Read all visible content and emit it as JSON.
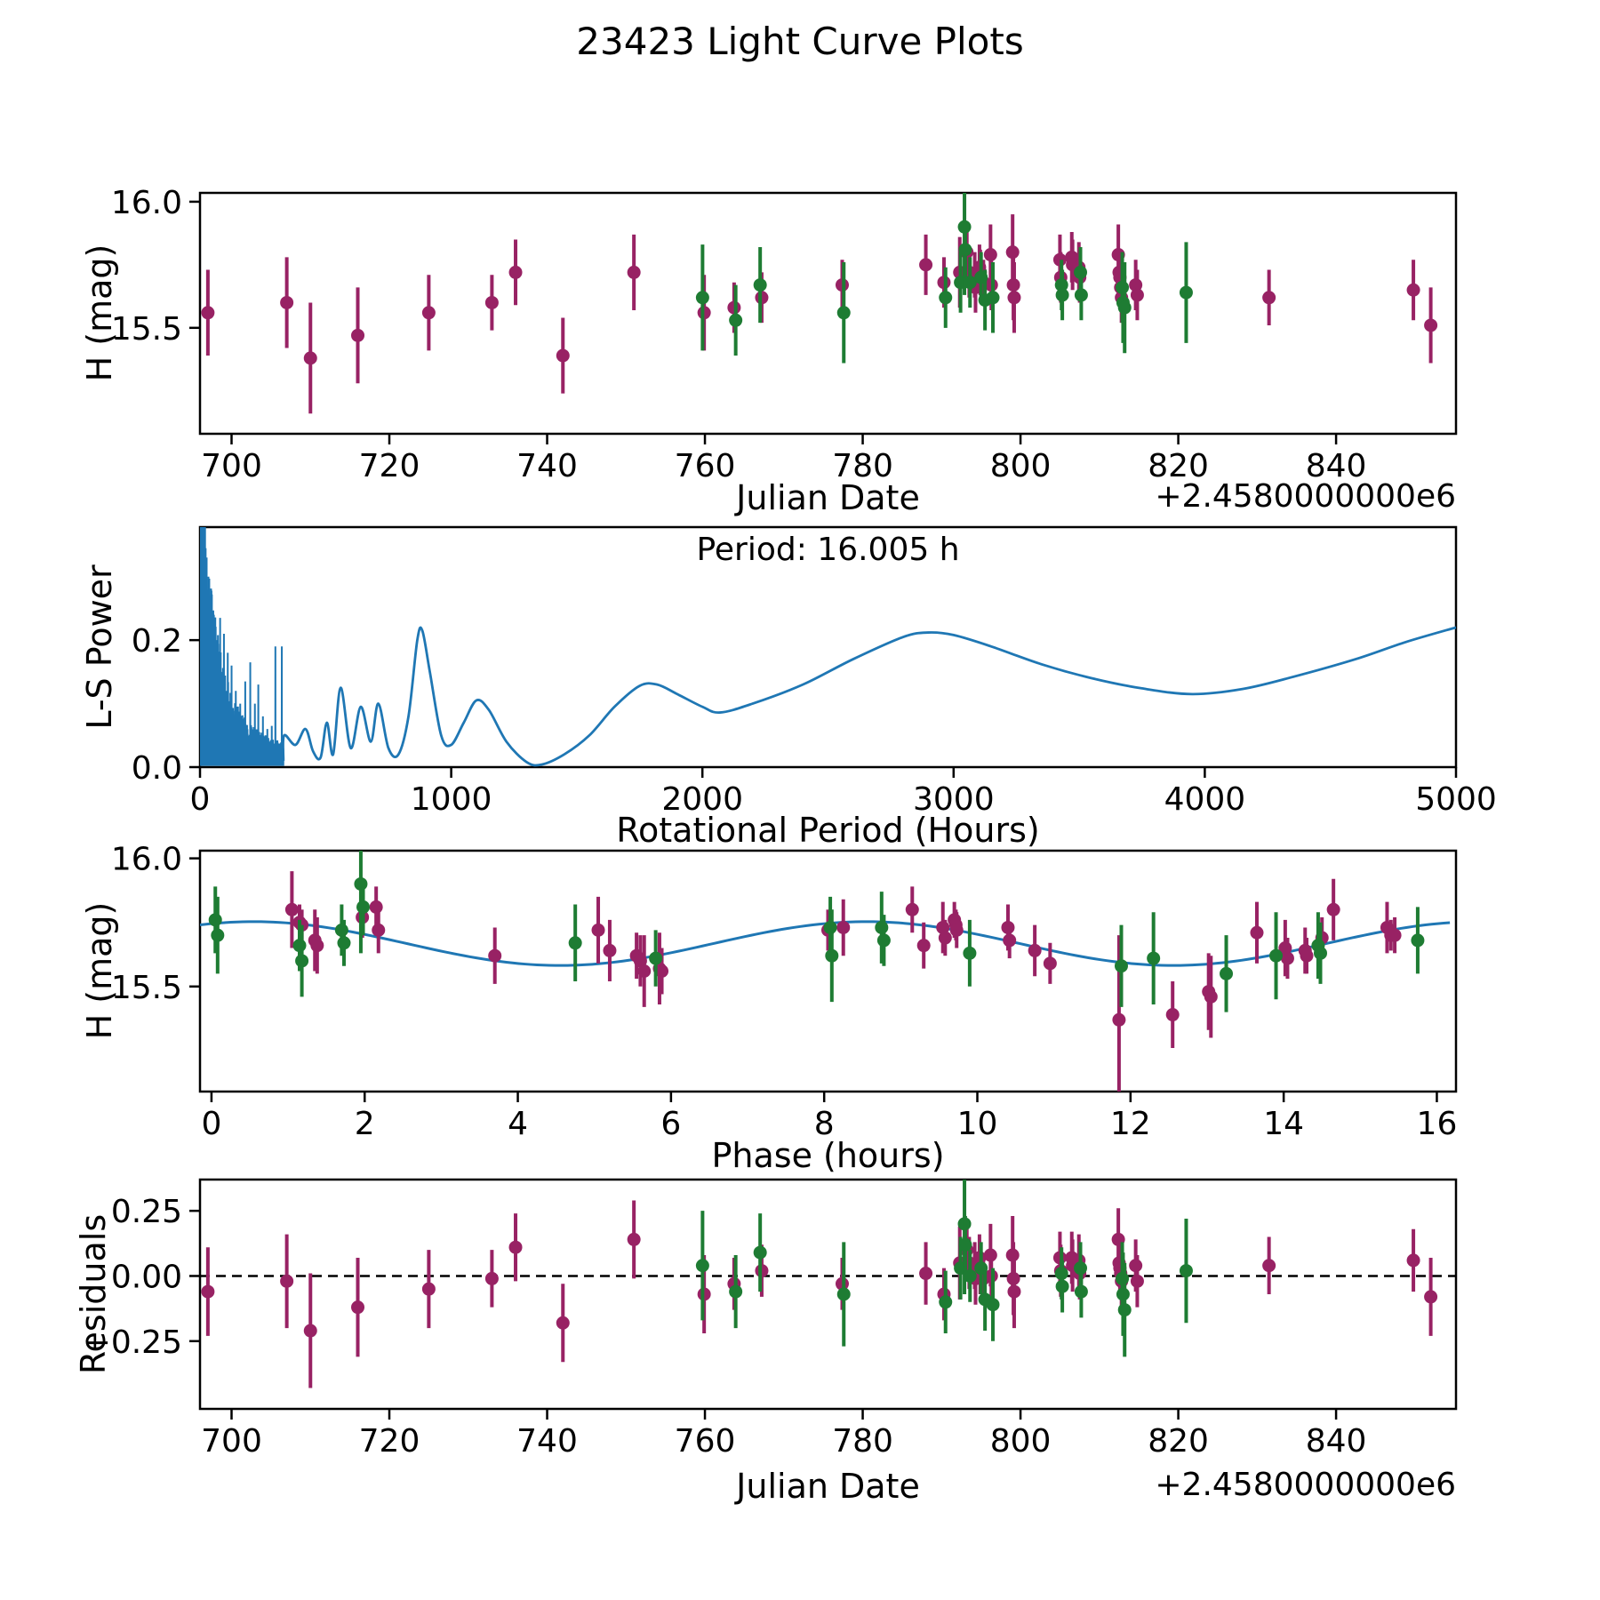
{
  "title": "23423 Light Curve Plots",
  "colors": {
    "series_a": "#982264",
    "series_b": "#1e7c33",
    "fit_line": "#1f77b4",
    "axis": "#000000"
  },
  "chart_data": {
    "light_curve": {
      "type": "scatter",
      "xlabel": "Julian Date",
      "ylabel": "H (mag)",
      "x_offset": "+2.4580000000e6",
      "xlim": [
        696.0,
        855.2
      ],
      "ylim": [
        15.08,
        16.035
      ],
      "xticks": [
        700,
        720,
        740,
        760,
        780,
        800,
        820,
        840
      ],
      "xtick_labels": [
        "700",
        "720",
        "740",
        "760",
        "780",
        "800",
        "820",
        "840"
      ],
      "yticks": [
        16.0,
        15.5
      ],
      "ytick_labels": [
        "16.0",
        "15.5"
      ],
      "series": {
        "purple": [
          [
            697.0,
            15.56,
            0.17,
            -0.06
          ],
          [
            707.0,
            15.6,
            0.18,
            -0.02
          ],
          [
            710.0,
            15.38,
            0.22,
            -0.21
          ],
          [
            716.0,
            15.47,
            0.19,
            -0.12
          ],
          [
            725.0,
            15.56,
            0.15,
            -0.05
          ],
          [
            733.0,
            15.6,
            0.11,
            -0.01
          ],
          [
            736.0,
            15.72,
            0.13,
            0.11
          ],
          [
            742.0,
            15.39,
            0.15,
            -0.18
          ],
          [
            751.0,
            15.72,
            0.15,
            0.14
          ],
          [
            759.9,
            15.56,
            0.15,
            -0.07
          ],
          [
            763.7,
            15.58,
            0.1,
            -0.03
          ],
          [
            767.2,
            15.62,
            0.1,
            0.02
          ],
          [
            777.4,
            15.67,
            0.1,
            -0.03
          ],
          [
            788.0,
            15.75,
            0.12,
            0.01
          ],
          [
            790.3,
            15.68,
            0.1,
            -0.07
          ],
          [
            792.3,
            15.72,
            0.14,
            0.05
          ],
          [
            793.2,
            15.8,
            0.1,
            0.1
          ],
          [
            793.5,
            15.72,
            0.1,
            0.05
          ],
          [
            794.2,
            15.71,
            0.09,
            0.04
          ],
          [
            794.3,
            15.66,
            0.1,
            -0.01
          ],
          [
            794.8,
            15.74,
            0.09,
            0.07
          ],
          [
            794.9,
            15.72,
            0.09,
            0.02
          ],
          [
            795.3,
            15.68,
            0.09,
            -0.01
          ],
          [
            796.2,
            15.79,
            0.12,
            0.08
          ],
          [
            796.3,
            15.67,
            0.1,
            0.0
          ],
          [
            799.0,
            15.8,
            0.15,
            0.08
          ],
          [
            799.1,
            15.67,
            0.14,
            -0.01
          ],
          [
            799.2,
            15.62,
            0.14,
            -0.06
          ],
          [
            805.0,
            15.77,
            0.1,
            0.07
          ],
          [
            805.1,
            15.7,
            0.1,
            0.02
          ],
          [
            806.5,
            15.78,
            0.1,
            0.07
          ],
          [
            806.6,
            15.75,
            0.1,
            0.04
          ],
          [
            807.4,
            15.74,
            0.1,
            0.06
          ],
          [
            807.5,
            15.7,
            0.1,
            0.01
          ],
          [
            812.4,
            15.79,
            0.12,
            0.14
          ],
          [
            812.5,
            15.72,
            0.09,
            0.05
          ],
          [
            812.6,
            15.7,
            0.09,
            0.03
          ],
          [
            812.7,
            15.66,
            0.09,
            0.01
          ],
          [
            812.8,
            15.62,
            0.1,
            -0.02
          ],
          [
            814.6,
            15.67,
            0.1,
            0.04
          ],
          [
            814.8,
            15.63,
            0.1,
            -0.02
          ],
          [
            831.5,
            15.62,
            0.11,
            0.04
          ],
          [
            849.8,
            15.65,
            0.12,
            0.06
          ],
          [
            852.0,
            15.51,
            0.15,
            -0.08
          ]
        ],
        "green": [
          [
            759.7,
            15.62,
            0.21,
            0.04
          ],
          [
            763.9,
            15.53,
            0.14,
            -0.06
          ],
          [
            767.0,
            15.67,
            0.15,
            0.09
          ],
          [
            777.6,
            15.56,
            0.2,
            -0.07
          ],
          [
            790.5,
            15.62,
            0.12,
            -0.1
          ],
          [
            792.4,
            15.68,
            0.12,
            0.03
          ],
          [
            792.9,
            15.9,
            0.27,
            0.2
          ],
          [
            793.0,
            15.81,
            0.11,
            0.12
          ],
          [
            793.6,
            15.68,
            0.1,
            0.0
          ],
          [
            795.0,
            15.7,
            0.1,
            0.03
          ],
          [
            795.5,
            15.61,
            0.12,
            -0.09
          ],
          [
            796.5,
            15.62,
            0.14,
            -0.11
          ],
          [
            805.2,
            15.67,
            0.1,
            0.01
          ],
          [
            805.3,
            15.63,
            0.1,
            -0.04
          ],
          [
            807.6,
            15.72,
            0.1,
            0.03
          ],
          [
            807.7,
            15.63,
            0.1,
            -0.06
          ],
          [
            812.9,
            15.66,
            0.14,
            -0.01
          ],
          [
            813.0,
            15.6,
            0.16,
            -0.07
          ],
          [
            813.2,
            15.58,
            0.18,
            -0.13
          ],
          [
            821.0,
            15.64,
            0.2,
            0.02
          ]
        ]
      }
    },
    "periodogram": {
      "type": "line",
      "xlabel": "Rotational Period (Hours)",
      "ylabel": "L-S Power",
      "annotation": "Period: 16.005 h",
      "best_period_hours": 16.005,
      "xlim": [
        0,
        5000
      ],
      "ylim": [
        0,
        0.378
      ],
      "xticks": [
        0,
        1000,
        2000,
        3000,
        4000,
        5000
      ],
      "xtick_labels": [
        "0",
        "1000",
        "2000",
        "3000",
        "4000",
        "5000"
      ],
      "yticks": [
        0.0,
        0.2
      ],
      "ytick_labels": [
        "0.0",
        "0.2"
      ],
      "noise_region": {
        "from": 0.5,
        "to": 332,
        "step": 0.8,
        "seed": 42,
        "envelope": [
          0.42,
          55,
          0.11,
          230,
          0.012
        ]
      },
      "spikes": [
        [
          14,
          0.62
        ],
        [
          20,
          0.44
        ],
        [
          26,
          0.33
        ],
        [
          33,
          0.3
        ],
        [
          42,
          0.27
        ],
        [
          55,
          0.24
        ],
        [
          68,
          0.2
        ],
        [
          80,
          0.235
        ],
        [
          95,
          0.21
        ],
        [
          110,
          0.18
        ],
        [
          125,
          0.16
        ],
        [
          142,
          0.12
        ],
        [
          160,
          0.1
        ],
        [
          180,
          0.135
        ],
        [
          200,
          0.165
        ],
        [
          218,
          0.1
        ],
        [
          232,
          0.13
        ],
        [
          250,
          0.08
        ],
        [
          268,
          0.06
        ],
        [
          285,
          0.065
        ],
        [
          300,
          0.19
        ],
        [
          325,
          0.19
        ]
      ],
      "smooth_curve": [
        [
          335,
          0.05
        ],
        [
          380,
          0.035
        ],
        [
          420,
          0.06
        ],
        [
          450,
          0.025
        ],
        [
          480,
          0.015
        ],
        [
          505,
          0.07
        ],
        [
          530,
          0.02
        ],
        [
          560,
          0.125
        ],
        [
          600,
          0.03
        ],
        [
          640,
          0.095
        ],
        [
          680,
          0.04
        ],
        [
          710,
          0.1
        ],
        [
          750,
          0.03
        ],
        [
          790,
          0.02
        ],
        [
          830,
          0.08
        ],
        [
          865,
          0.2
        ],
        [
          885,
          0.215
        ],
        [
          915,
          0.15
        ],
        [
          960,
          0.05
        ],
        [
          1000,
          0.035
        ],
        [
          1050,
          0.07
        ],
        [
          1100,
          0.105
        ],
        [
          1150,
          0.09
        ],
        [
          1220,
          0.04
        ],
        [
          1300,
          0.008
        ],
        [
          1360,
          0.004
        ],
        [
          1450,
          0.02
        ],
        [
          1550,
          0.05
        ],
        [
          1650,
          0.095
        ],
        [
          1750,
          0.128
        ],
        [
          1820,
          0.13
        ],
        [
          1900,
          0.115
        ],
        [
          2000,
          0.095
        ],
        [
          2070,
          0.086
        ],
        [
          2200,
          0.1
        ],
        [
          2400,
          0.13
        ],
        [
          2600,
          0.17
        ],
        [
          2800,
          0.205
        ],
        [
          2900,
          0.212
        ],
        [
          3000,
          0.208
        ],
        [
          3150,
          0.19
        ],
        [
          3350,
          0.162
        ],
        [
          3550,
          0.14
        ],
        [
          3750,
          0.124
        ],
        [
          3950,
          0.115
        ],
        [
          4150,
          0.123
        ],
        [
          4350,
          0.142
        ],
        [
          4600,
          0.17
        ],
        [
          4800,
          0.197
        ],
        [
          5000,
          0.22
        ]
      ]
    },
    "phase_curve": {
      "type": "scatter_with_fit",
      "xlabel": "Phase (hours)",
      "ylabel": "H (mag)",
      "xlim": [
        -0.15,
        16.25
      ],
      "ylim": [
        15.09,
        16.03
      ],
      "xticks": [
        0,
        2,
        4,
        6,
        8,
        10,
        12,
        14,
        16
      ],
      "xtick_labels": [
        "0",
        "2",
        "4",
        "6",
        "8",
        "10",
        "12",
        "14",
        "16"
      ],
      "yticks": [
        16.0,
        15.5
      ],
      "ytick_labels": [
        "16.0",
        "15.5"
      ],
      "fit": {
        "mean": 15.6675,
        "amplitude": 0.0855,
        "period_hours": 8.0025,
        "phase_of_max": 0.55
      },
      "series": {
        "purple": [
          [
            1.05,
            15.8,
            0.15
          ],
          [
            1.15,
            15.75,
            0.07
          ],
          [
            1.18,
            15.74,
            0.06
          ],
          [
            1.35,
            15.68,
            0.12
          ],
          [
            1.38,
            15.66,
            0.11
          ],
          [
            1.97,
            15.77,
            0.08
          ],
          [
            2.15,
            15.81,
            0.08
          ],
          [
            2.18,
            15.72,
            0.09
          ],
          [
            3.7,
            15.62,
            0.11
          ],
          [
            5.05,
            15.72,
            0.13
          ],
          [
            5.2,
            15.64,
            0.12
          ],
          [
            5.55,
            15.62,
            0.09
          ],
          [
            5.6,
            15.6,
            0.1
          ],
          [
            5.65,
            15.56,
            0.14
          ],
          [
            5.85,
            15.57,
            0.14
          ],
          [
            5.88,
            15.56,
            0.09
          ],
          [
            8.05,
            15.72,
            0.08
          ],
          [
            8.25,
            15.73,
            0.11
          ],
          [
            9.15,
            15.8,
            0.09
          ],
          [
            9.3,
            15.66,
            0.09
          ],
          [
            9.55,
            15.73,
            0.1
          ],
          [
            9.58,
            15.69,
            0.07
          ],
          [
            9.7,
            15.76,
            0.07
          ],
          [
            9.72,
            15.74,
            0.06
          ],
          [
            9.73,
            15.72,
            0.07
          ],
          [
            10.4,
            15.73,
            0.09
          ],
          [
            10.42,
            15.68,
            0.07
          ],
          [
            10.75,
            15.64,
            0.1
          ],
          [
            10.95,
            15.59,
            0.08
          ],
          [
            11.85,
            15.37,
            0.33
          ],
          [
            12.55,
            15.39,
            0.13
          ],
          [
            13.02,
            15.48,
            0.15
          ],
          [
            13.05,
            15.46,
            0.16
          ],
          [
            13.65,
            15.71,
            0.12
          ],
          [
            14.02,
            15.65,
            0.11
          ],
          [
            14.05,
            15.61,
            0.08
          ],
          [
            14.28,
            15.64,
            0.09
          ],
          [
            14.3,
            15.62,
            0.07
          ],
          [
            14.5,
            15.69,
            0.08
          ],
          [
            14.65,
            15.8,
            0.12
          ],
          [
            15.35,
            15.73,
            0.1
          ],
          [
            15.4,
            15.7,
            0.06
          ],
          [
            15.45,
            15.7,
            0.07
          ]
        ],
        "green": [
          [
            0.05,
            15.76,
            0.13
          ],
          [
            0.08,
            15.7,
            0.15
          ],
          [
            1.15,
            15.66,
            0.1
          ],
          [
            1.18,
            15.6,
            0.14
          ],
          [
            1.7,
            15.72,
            0.1
          ],
          [
            1.73,
            15.67,
            0.09
          ],
          [
            1.95,
            15.9,
            0.27
          ],
          [
            1.98,
            15.81,
            0.11
          ],
          [
            4.75,
            15.67,
            0.15
          ],
          [
            5.8,
            15.61,
            0.11
          ],
          [
            8.08,
            15.73,
            0.12
          ],
          [
            8.1,
            15.62,
            0.18
          ],
          [
            8.75,
            15.73,
            0.14
          ],
          [
            8.78,
            15.68,
            0.1
          ],
          [
            9.9,
            15.63,
            0.13
          ],
          [
            11.88,
            15.58,
            0.16
          ],
          [
            12.3,
            15.61,
            0.18
          ],
          [
            13.25,
            15.55,
            0.15
          ],
          [
            13.9,
            15.62,
            0.17
          ],
          [
            14.45,
            15.66,
            0.13
          ],
          [
            14.48,
            15.63,
            0.12
          ],
          [
            15.75,
            15.68,
            0.13
          ]
        ]
      }
    },
    "residuals": {
      "type": "scatter",
      "xlabel": "Julian Date",
      "ylabel": "Residuals",
      "x_offset": "+2.4580000000e6",
      "xlim": [
        696.0,
        855.2
      ],
      "ylim": [
        -0.51,
        0.37
      ],
      "xticks": [
        700,
        720,
        740,
        760,
        780,
        800,
        820,
        840
      ],
      "xtick_labels": [
        "700",
        "720",
        "740",
        "760",
        "780",
        "800",
        "820",
        "840"
      ],
      "yticks": [
        0.25,
        0.0,
        -0.25
      ],
      "ytick_labels": [
        "0.25",
        "0.00",
        "−0.25"
      ],
      "zero_line_dashed": true,
      "points_from": "light_curve series: [jd, residual, err]"
    }
  }
}
